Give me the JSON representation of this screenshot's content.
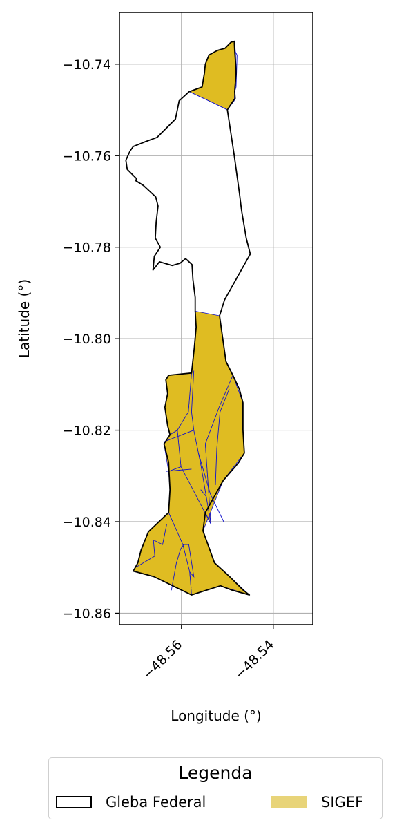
{
  "chart_data": {
    "type": "map",
    "xlabel": "Longitude (°)",
    "ylabel": "Latitude (°)",
    "xlim": [
      -48.5735,
      -48.5314
    ],
    "ylim": [
      -10.8625,
      -10.7287
    ],
    "grid": true,
    "x_ticks": [
      {
        "value": -48.56,
        "label": "−48.56"
      },
      {
        "value": -48.54,
        "label": "−48.54"
      }
    ],
    "y_ticks": [
      {
        "value": -10.74,
        "label": "−10.74"
      },
      {
        "value": -10.76,
        "label": "−10.76"
      },
      {
        "value": -10.78,
        "label": "−10.78"
      },
      {
        "value": -10.8,
        "label": "−10.80"
      },
      {
        "value": -10.82,
        "label": "−10.82"
      },
      {
        "value": -10.84,
        "label": "−10.84"
      },
      {
        "value": -10.86,
        "label": "−10.86"
      }
    ],
    "layers": [
      {
        "name": "Gleba Federal",
        "style": "outline",
        "edge_color": "#000000",
        "fill": "none"
      },
      {
        "name": "SIGEF",
        "style": "filled",
        "fill_color": "#dfbc22",
        "edge_color": "#1010cc",
        "legend_color": "#e8d479"
      }
    ],
    "gleba_outline": [
      [
        -48.5485,
        -10.735
      ],
      [
        -48.5484,
        -10.737
      ],
      [
        -48.5482,
        -10.74
      ],
      [
        -48.5481,
        -10.742
      ],
      [
        -48.5484,
        -10.746
      ],
      [
        -48.5483,
        -10.7475
      ],
      [
        -48.5487,
        -10.748
      ],
      [
        -48.55,
        -10.75
      ],
      [
        -48.5485,
        -10.76
      ],
      [
        -48.5474,
        -10.768
      ],
      [
        -48.5469,
        -10.772
      ],
      [
        -48.5459,
        -10.778
      ],
      [
        -48.545,
        -10.7815
      ],
      [
        -48.5478,
        -10.7865
      ],
      [
        -48.5506,
        -10.7915
      ],
      [
        -48.5517,
        -10.795
      ],
      [
        -48.5503,
        -10.805
      ],
      [
        -48.5488,
        -10.808
      ],
      [
        -48.5474,
        -10.811
      ],
      [
        -48.5466,
        -10.814
      ],
      [
        -48.5466,
        -10.82
      ],
      [
        -48.5463,
        -10.825
      ],
      [
        -48.5475,
        -10.827
      ],
      [
        -48.5483,
        -10.828
      ],
      [
        -48.5509,
        -10.831
      ],
      [
        -48.5548,
        -10.838
      ],
      [
        -48.5553,
        -10.842
      ],
      [
        -48.5528,
        -10.849
      ],
      [
        -48.5495,
        -10.852
      ],
      [
        -48.5465,
        -10.855
      ],
      [
        -48.5452,
        -10.856
      ],
      [
        -48.5489,
        -10.855
      ],
      [
        -48.5515,
        -10.854
      ],
      [
        -48.5578,
        -10.856
      ],
      [
        -48.566,
        -10.852
      ],
      [
        -48.5705,
        -10.8508
      ],
      [
        -48.5695,
        -10.849
      ],
      [
        -48.5688,
        -10.8462
      ],
      [
        -48.5672,
        -10.8422
      ],
      [
        -48.5628,
        -10.838
      ],
      [
        -48.5625,
        -10.833
      ],
      [
        -48.5627,
        -10.829
      ],
      [
        -48.5628,
        -10.827
      ],
      [
        -48.5638,
        -10.823
      ],
      [
        -48.5625,
        -10.821
      ],
      [
        -48.563,
        -10.819
      ],
      [
        -48.5636,
        -10.815
      ],
      [
        -48.563,
        -10.812
      ],
      [
        -48.5634,
        -10.809
      ],
      [
        -48.5628,
        -10.808
      ],
      [
        -48.5578,
        -10.8075
      ],
      [
        -48.5572,
        -10.802
      ],
      [
        -48.5568,
        -10.7975
      ],
      [
        -48.557,
        -10.794
      ],
      [
        -48.557,
        -10.791
      ],
      [
        -48.5575,
        -10.787
      ],
      [
        -48.5577,
        -10.7838
      ],
      [
        -48.5591,
        -10.7825
      ],
      [
        -48.5603,
        -10.7835
      ],
      [
        -48.562,
        -10.784
      ],
      [
        -48.5648,
        -10.7832
      ],
      [
        -48.5662,
        -10.785
      ],
      [
        -48.5659,
        -10.782
      ],
      [
        -48.5646,
        -10.78
      ],
      [
        -48.5657,
        -10.778
      ],
      [
        -48.5655,
        -10.7745
      ],
      [
        -48.5651,
        -10.771
      ],
      [
        -48.5656,
        -10.769
      ],
      [
        -48.5683,
        -10.7665
      ],
      [
        -48.5699,
        -10.7655
      ],
      [
        -48.5698,
        -10.765
      ],
      [
        -48.5718,
        -10.763
      ],
      [
        -48.5721,
        -10.761
      ],
      [
        -48.5712,
        -10.759
      ],
      [
        -48.5705,
        -10.758
      ],
      [
        -48.568,
        -10.757
      ],
      [
        -48.5653,
        -10.756
      ],
      [
        -48.5613,
        -10.752
      ],
      [
        -48.5605,
        -10.748
      ],
      [
        -48.5583,
        -10.746
      ],
      [
        -48.5555,
        -10.745
      ],
      [
        -48.555,
        -10.742
      ],
      [
        -48.5548,
        -10.74
      ],
      [
        -48.554,
        -10.738
      ],
      [
        -48.5522,
        -10.737
      ],
      [
        -48.5505,
        -10.7365
      ],
      [
        -48.5492,
        -10.7352
      ],
      [
        -48.5485,
        -10.735
      ]
    ],
    "sigef_parcels": [
      [
        [
          -48.5484,
          -10.735
        ],
        [
          -48.5482,
          -10.738
        ],
        [
          -48.5481,
          -10.742
        ],
        [
          -48.5484,
          -10.746
        ],
        [
          -48.5485,
          -10.748
        ],
        [
          -48.55,
          -10.75
        ],
        [
          -48.553,
          -10.7485
        ],
        [
          -48.5583,
          -10.746
        ],
        [
          -48.5555,
          -10.745
        ],
        [
          -48.555,
          -10.742
        ],
        [
          -48.5548,
          -10.74
        ],
        [
          -48.554,
          -10.738
        ],
        [
          -48.5522,
          -10.737
        ],
        [
          -48.5505,
          -10.7365
        ],
        [
          -48.5492,
          -10.7352
        ]
      ],
      [
        [
          -48.557,
          -10.794
        ],
        [
          -48.5517,
          -10.795
        ],
        [
          -48.5503,
          -10.805
        ],
        [
          -48.5488,
          -10.808
        ],
        [
          -48.5518,
          -10.815
        ],
        [
          -48.5548,
          -10.823
        ],
        [
          -48.5536,
          -10.8405
        ],
        [
          -48.5601,
          -10.828
        ],
        [
          -48.5609,
          -10.82
        ],
        [
          -48.5585,
          -10.816
        ],
        [
          -48.5578,
          -10.8075
        ],
        [
          -48.5572,
          -10.802
        ],
        [
          -48.5568,
          -10.7975
        ]
      ],
      [
        [
          -48.5488,
          -10.808
        ],
        [
          -48.5466,
          -10.814
        ],
        [
          -48.5466,
          -10.82
        ],
        [
          -48.5463,
          -10.825
        ],
        [
          -48.5509,
          -10.831
        ],
        [
          -48.5548,
          -10.838
        ],
        [
          -48.5536,
          -10.8405
        ],
        [
          -48.5548,
          -10.823
        ],
        [
          -48.5518,
          -10.815
        ]
      ],
      [
        [
          -48.5578,
          -10.8075
        ],
        [
          -48.5628,
          -10.808
        ],
        [
          -48.5634,
          -10.809
        ],
        [
          -48.563,
          -10.812
        ],
        [
          -48.5636,
          -10.815
        ],
        [
          -48.563,
          -10.819
        ],
        [
          -48.5625,
          -10.821
        ],
        [
          -48.5609,
          -10.82
        ],
        [
          -48.5585,
          -10.816
        ]
      ],
      [
        [
          -48.5625,
          -10.821
        ],
        [
          -48.5609,
          -10.82
        ],
        [
          -48.5601,
          -10.828
        ],
        [
          -48.5628,
          -10.829
        ],
        [
          -48.5638,
          -10.823
        ]
      ],
      [
        [
          -48.5628,
          -10.829
        ],
        [
          -48.5601,
          -10.828
        ],
        [
          -48.5536,
          -10.8405
        ],
        [
          -48.5548,
          -10.838
        ],
        [
          -48.5509,
          -10.831
        ],
        [
          -48.5553,
          -10.842
        ],
        [
          -48.5528,
          -10.849
        ],
        [
          -48.5452,
          -10.856
        ],
        [
          -48.5515,
          -10.854
        ],
        [
          -48.5578,
          -10.856
        ],
        [
          -48.5582,
          -10.851
        ],
        [
          -48.5597,
          -10.845
        ],
        [
          -48.5628,
          -10.838
        ],
        [
          -48.5625,
          -10.833
        ]
      ],
      [
        [
          -48.5628,
          -10.838
        ],
        [
          -48.5597,
          -10.845
        ],
        [
          -48.5582,
          -10.851
        ],
        [
          -48.5578,
          -10.856
        ],
        [
          -48.566,
          -10.852
        ],
        [
          -48.5705,
          -10.8508
        ],
        [
          -48.5695,
          -10.849
        ],
        [
          -48.5688,
          -10.8462
        ],
        [
          -48.5672,
          -10.8422
        ]
      ]
    ],
    "sigef_divisions": [
      [
        [
          -48.5583,
          -10.746
        ],
        [
          -48.553,
          -10.7485
        ],
        [
          -48.55,
          -10.75
        ]
      ],
      [
        [
          -48.5484,
          -10.737
        ],
        [
          -48.5479,
          -10.738
        ],
        [
          -48.548,
          -10.742
        ],
        [
          -48.5481,
          -10.745
        ],
        [
          -48.5484,
          -10.746
        ]
      ],
      [
        [
          -48.5573,
          -10.807
        ],
        [
          -48.5578,
          -10.816
        ],
        [
          -48.5573,
          -10.82
        ],
        [
          -48.5563,
          -10.825
        ],
        [
          -48.5557,
          -10.828
        ],
        [
          -48.5536,
          -10.8405
        ]
      ],
      [
        [
          -48.5637,
          -10.8225
        ],
        [
          -48.5573,
          -10.82
        ]
      ],
      [
        [
          -48.5563,
          -10.825
        ],
        [
          -48.5537,
          -10.834
        ]
      ],
      [
        [
          -48.5578,
          -10.8285
        ],
        [
          -48.5633,
          -10.829
        ]
      ],
      [
        [
          -48.5537,
          -10.834
        ],
        [
          -48.5508,
          -10.84
        ]
      ],
      [
        [
          -48.5526,
          -10.832
        ],
        [
          -48.5523,
          -10.824
        ],
        [
          -48.5516,
          -10.816
        ],
        [
          -48.5496,
          -10.811
        ]
      ],
      [
        [
          -48.5546,
          -10.8345
        ],
        [
          -48.5558,
          -10.833
        ]
      ],
      [
        [
          -48.5658,
          -10.8475
        ],
        [
          -48.5661,
          -10.844
        ],
        [
          -48.5641,
          -10.845
        ],
        [
          -48.5632,
          -10.8405
        ]
      ],
      [
        [
          -48.5622,
          -10.855
        ],
        [
          -48.5611,
          -10.849
        ],
        [
          -48.5602,
          -10.846
        ],
        [
          -48.5595,
          -10.845
        ],
        [
          -48.5584,
          -10.845
        ],
        [
          -48.5573,
          -10.852
        ],
        [
          -48.5582,
          -10.851
        ],
        [
          -48.5579,
          -10.8545
        ]
      ],
      [
        [
          -48.57,
          -10.85
        ],
        [
          -48.5658,
          -10.8475
        ]
      ]
    ]
  },
  "legend": {
    "title": "Legenda",
    "items": [
      {
        "label": "Gleba Federal"
      },
      {
        "label": "SIGEF"
      }
    ]
  }
}
